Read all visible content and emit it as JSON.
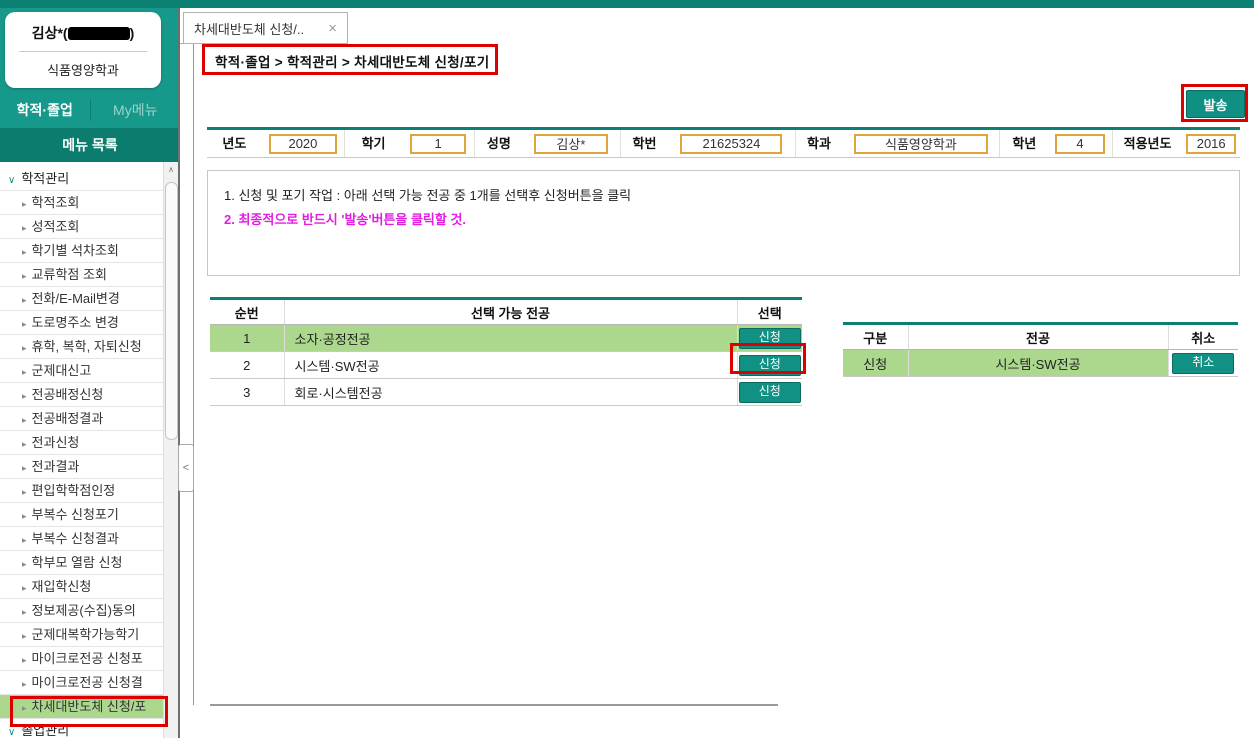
{
  "colors": {
    "teal_dark": "#0c8072",
    "teal_button": "#109184",
    "highlight_green": "#abd88c",
    "annotation_red": "#dd0000",
    "input_border_gold": "#e2a33c",
    "notice_magenta": "#e21ee2"
  },
  "icons": {
    "tab_close": "×",
    "collapse": "<",
    "scroll_up": "∧",
    "chevron_expanded": "∨",
    "chevron_item": "▸"
  },
  "sidebar": {
    "user": {
      "name_prefix": "김상*(",
      "name_suffix": ")",
      "department": "식품영양학과"
    },
    "tabs": [
      {
        "label": "학적·졸업"
      },
      {
        "label": "My메뉴"
      }
    ],
    "menu_header": "메뉴 목록",
    "menu": {
      "top_item": "학적관리",
      "items": [
        "학적조회",
        "성적조회",
        "학기별 석차조회",
        "교류학점 조회",
        "전화/E-Mail변경",
        "도로명주소 변경",
        "휴학, 복학, 자퇴신청",
        "군제대신고",
        "전공배정신청",
        "전공배정결과",
        "전과신청",
        "전과결과",
        "편입학학점인정",
        "부복수 신청포기",
        "부복수 신청결과",
        "학부모 열람 신청",
        "재입학신청",
        "정보제공(수집)동의",
        "군제대복학가능학기",
        "마이크로전공 신청포",
        "마이크로전공 신청결",
        "차세대반도체 신청/포"
      ],
      "selected_index": 21,
      "bottom_item": "졸업관리"
    }
  },
  "tab": {
    "title": "차세대반도체 신청/.."
  },
  "breadcrumb": "학적·졸업 > 학적관리 > 차세대반도체 신청/포기",
  "send_button": "발송",
  "form": {
    "fields": [
      {
        "label": "년도",
        "value": "2020"
      },
      {
        "label": "학기",
        "value": "1"
      },
      {
        "label": "성명",
        "value": "김상*"
      },
      {
        "label": "학번",
        "value": "21625324"
      },
      {
        "label": "학과",
        "value": "식품영양학과"
      },
      {
        "label": "학년",
        "value": "4"
      },
      {
        "label": "적용년도",
        "value": "2016"
      }
    ]
  },
  "notice": {
    "line1": "1. 신청 및 포기 작업 : 아래 선택 가능 전공 중 1개를 선택후 신청버튼을 클릭",
    "line2": "2. 최종적으로 반드시 '발송'버튼을 클릭할 것."
  },
  "left_table": {
    "headers": [
      "순번",
      "선택 가능 전공",
      "선택"
    ],
    "apply_button_label": "신청",
    "rows": [
      {
        "num": "1",
        "major": "소자·공정전공"
      },
      {
        "num": "2",
        "major": "시스템·SW전공"
      },
      {
        "num": "3",
        "major": "회로·시스템전공"
      }
    ]
  },
  "right_table": {
    "headers": [
      "구분",
      "전공",
      "취소"
    ],
    "cancel_button_label": "취소",
    "rows": [
      {
        "type": "신청",
        "major": "시스템·SW전공"
      }
    ]
  }
}
